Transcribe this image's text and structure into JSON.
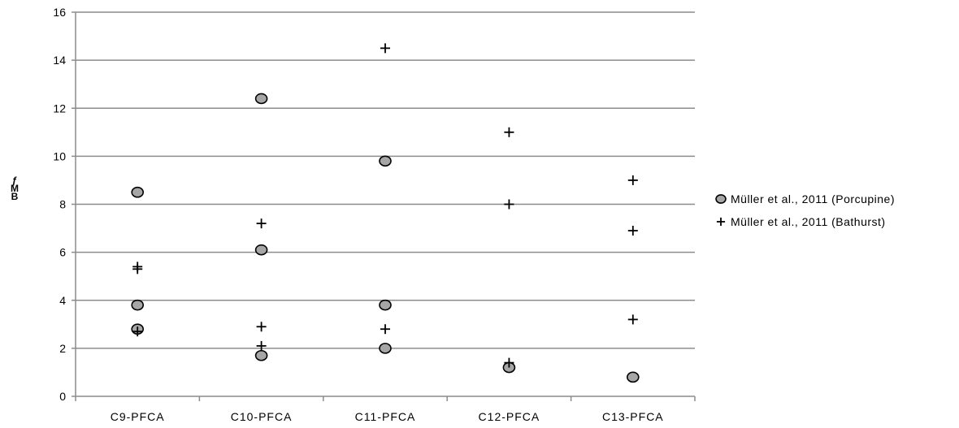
{
  "chart_data": {
    "type": "scatter",
    "categories": [
      "C9-PFCA",
      "C10-PFCA",
      "C11-PFCA",
      "C12-PFCA",
      "C13-PFCA"
    ],
    "ylabel": "ƒ M B",
    "ylim": [
      0,
      16
    ],
    "yticks": [
      0,
      2,
      4,
      6,
      8,
      10,
      12,
      14,
      16
    ],
    "grid": true,
    "legend_position": "right",
    "series": [
      {
        "name": "Müller et al., 2011 (Porcupine)",
        "marker": "circle",
        "color": "#a6a6a6",
        "points": [
          {
            "x": "C9-PFCA",
            "y": 8.5
          },
          {
            "x": "C9-PFCA",
            "y": 3.8
          },
          {
            "x": "C9-PFCA",
            "y": 2.8
          },
          {
            "x": "C10-PFCA",
            "y": 12.4
          },
          {
            "x": "C10-PFCA",
            "y": 6.1
          },
          {
            "x": "C10-PFCA",
            "y": 1.7
          },
          {
            "x": "C11-PFCA",
            "y": 9.8
          },
          {
            "x": "C11-PFCA",
            "y": 3.8
          },
          {
            "x": "C11-PFCA",
            "y": 2.0
          },
          {
            "x": "C12-PFCA",
            "y": 1.2
          },
          {
            "x": "C13-PFCA",
            "y": 0.8
          }
        ]
      },
      {
        "name": "Müller et al., 2011 (Bathurst)",
        "marker": "plus",
        "color": "#000000",
        "points": [
          {
            "x": "C9-PFCA",
            "y": 5.4
          },
          {
            "x": "C9-PFCA",
            "y": 5.3
          },
          {
            "x": "C9-PFCA",
            "y": 2.7
          },
          {
            "x": "C10-PFCA",
            "y": 7.2
          },
          {
            "x": "C10-PFCA",
            "y": 2.9
          },
          {
            "x": "C10-PFCA",
            "y": 2.1
          },
          {
            "x": "C11-PFCA",
            "y": 14.5
          },
          {
            "x": "C11-PFCA",
            "y": 2.8
          },
          {
            "x": "C12-PFCA",
            "y": 11.0
          },
          {
            "x": "C12-PFCA",
            "y": 8.0
          },
          {
            "x": "C12-PFCA",
            "y": 1.4
          },
          {
            "x": "C13-PFCA",
            "y": 9.0
          },
          {
            "x": "C13-PFCA",
            "y": 6.9
          },
          {
            "x": "C13-PFCA",
            "y": 3.2
          }
        ]
      }
    ]
  }
}
